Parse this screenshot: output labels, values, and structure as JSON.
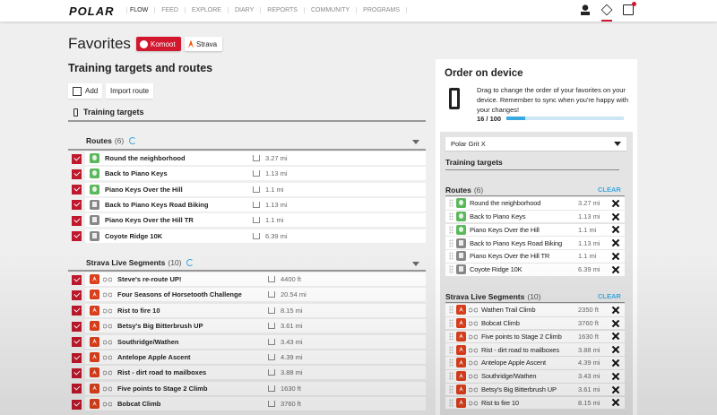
{
  "header": {
    "logo": "POLAR",
    "nav": [
      "FLOW",
      "FEED",
      "EXPLORE",
      "DIARY",
      "REPORTS",
      "COMMUNITY",
      "PROGRAMS"
    ]
  },
  "title": "Favorites",
  "komoot_label": "Komoot",
  "strava_label": "Strava",
  "section_title": "Training targets and routes",
  "add_label": "Add",
  "import_label": "Import route",
  "training_targets_label": "Training targets",
  "routes": {
    "label": "Routes",
    "count": "(6)",
    "items": [
      {
        "name": "Round the neighborhood",
        "dist": "3.27 mi",
        "type": "komoot"
      },
      {
        "name": "Back to Piano Keys",
        "dist": "1.13 mi",
        "type": "komoot"
      },
      {
        "name": "Piano Keys Over the Hill",
        "dist": "1.1 mi",
        "type": "komoot"
      },
      {
        "name": "Back to Piano Keys Road Biking",
        "dist": "1.13 mi",
        "type": "run"
      },
      {
        "name": "Piano Keys Over the Hill TR",
        "dist": "1.1 mi",
        "type": "run"
      },
      {
        "name": "Coyote Ridge 10K",
        "dist": "6.39 mi",
        "type": "run"
      }
    ]
  },
  "strava": {
    "label": "Strava Live Segments",
    "count": "(10)",
    "items": [
      {
        "name": "Steve's re-route UP!",
        "dist": "4400 ft"
      },
      {
        "name": "Four Seasons of Horsetooth Challenge",
        "dist": "20.54 mi"
      },
      {
        "name": "Rist to fire 10",
        "dist": "8.15 mi"
      },
      {
        "name": "Betsy's Big Bitterbrush UP",
        "dist": "3.61 mi"
      },
      {
        "name": "Southridge/Wathen",
        "dist": "3.43 mi"
      },
      {
        "name": "Antelope Apple Ascent",
        "dist": "4.39 mi"
      },
      {
        "name": "Rist - dirt road to mailboxes",
        "dist": "3.88 mi"
      },
      {
        "name": "Five points to Stage 2 Climb",
        "dist": "1630 ft"
      },
      {
        "name": "Bobcat Climb",
        "dist": "3760 ft"
      }
    ]
  },
  "order": {
    "title": "Order on device",
    "desc": "Drag to change the order of your favorites on your device. Remember to sync when you're happy with your changes!",
    "progress_text": "16 / 100",
    "progress": 0.16,
    "device": "Polar Grit X",
    "training_targets": "Training targets",
    "clear": "CLEAR",
    "routes": [
      {
        "name": "Round the neighborhood",
        "dist": "3.27 mi",
        "type": "komoot"
      },
      {
        "name": "Back to Piano Keys",
        "dist": "1.13 mi",
        "type": "komoot"
      },
      {
        "name": "Piano Keys Over the Hill",
        "dist": "1.1 mi",
        "type": "komoot"
      },
      {
        "name": "Back to Piano Keys Road Biking",
        "dist": "1.13 mi",
        "type": "run"
      },
      {
        "name": "Piano Keys Over the Hill TR",
        "dist": "1.1 mi",
        "type": "run"
      },
      {
        "name": "Coyote Ridge 10K",
        "dist": "6.39 mi",
        "type": "run"
      }
    ],
    "strava": [
      {
        "name": "Wathen Trail Climb",
        "dist": "2350 ft"
      },
      {
        "name": "Bobcat Climb",
        "dist": "3760 ft"
      },
      {
        "name": "Five points to Stage 2 Climb",
        "dist": "1630 ft"
      },
      {
        "name": "Rist - dirt road to mailboxes",
        "dist": "3.88 mi"
      },
      {
        "name": "Antelope Apple Ascent",
        "dist": "4.39 mi"
      },
      {
        "name": "Southridge/Wathen",
        "dist": "3.43 mi"
      },
      {
        "name": "Betsy's Big Bitterbrush UP",
        "dist": "3.61 mi"
      },
      {
        "name": "Rist to fire 10",
        "dist": "8.15 mi"
      }
    ]
  }
}
